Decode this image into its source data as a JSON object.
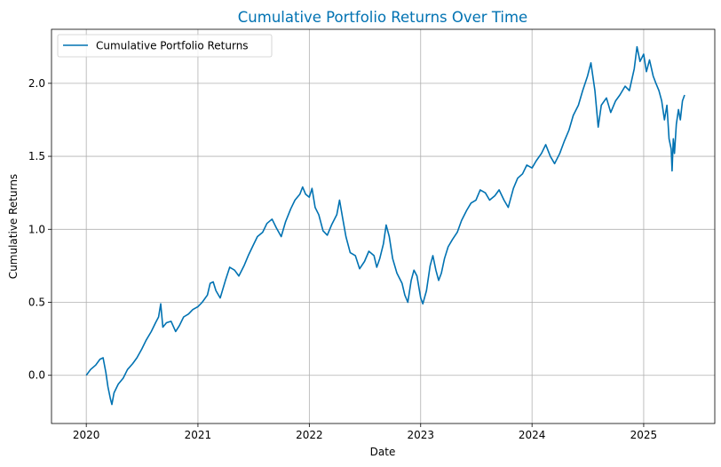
{
  "chart_data": {
    "type": "line",
    "title": "Cumulative Portfolio Returns Over Time",
    "xlabel": "Date",
    "ylabel": "Cumulative Returns",
    "x_ticks": [
      "2020",
      "2021",
      "2022",
      "2023",
      "2024",
      "2025"
    ],
    "y_ticks": [
      "0.0",
      "0.5",
      "1.0",
      "1.5",
      "2.0"
    ],
    "xlim": [
      "2019-09-09",
      "2025-08-22"
    ],
    "ylim": [
      -0.33,
      2.37
    ],
    "grid": true,
    "legend_position": "top-left",
    "colors": {
      "series": "#0072B2",
      "title": "#0072B2"
    },
    "series": [
      {
        "name": "Cumulative Portfolio Returns",
        "points": [
          [
            "2020-01-01",
            0.0
          ],
          [
            "2020-01-15",
            0.04
          ],
          [
            "2020-02-01",
            0.07
          ],
          [
            "2020-02-15",
            0.11
          ],
          [
            "2020-02-25",
            0.12
          ],
          [
            "2020-03-05",
            0.02
          ],
          [
            "2020-03-12",
            -0.08
          ],
          [
            "2020-03-20",
            -0.16
          ],
          [
            "2020-03-25",
            -0.2
          ],
          [
            "2020-04-01",
            -0.12
          ],
          [
            "2020-04-15",
            -0.06
          ],
          [
            "2020-05-01",
            -0.02
          ],
          [
            "2020-05-15",
            0.04
          ],
          [
            "2020-06-01",
            0.08
          ],
          [
            "2020-06-15",
            0.12
          ],
          [
            "2020-07-01",
            0.18
          ],
          [
            "2020-07-15",
            0.24
          ],
          [
            "2020-08-01",
            0.3
          ],
          [
            "2020-08-15",
            0.36
          ],
          [
            "2020-08-25",
            0.4
          ],
          [
            "2020-09-01",
            0.49
          ],
          [
            "2020-09-08",
            0.33
          ],
          [
            "2020-09-20",
            0.36
          ],
          [
            "2020-10-05",
            0.37
          ],
          [
            "2020-10-20",
            0.3
          ],
          [
            "2020-11-01",
            0.34
          ],
          [
            "2020-11-15",
            0.4
          ],
          [
            "2020-12-01",
            0.42
          ],
          [
            "2020-12-15",
            0.45
          ],
          [
            "2021-01-01",
            0.47
          ],
          [
            "2021-01-15",
            0.5
          ],
          [
            "2021-02-01",
            0.55
          ],
          [
            "2021-02-10",
            0.63
          ],
          [
            "2021-02-20",
            0.64
          ],
          [
            "2021-03-01",
            0.58
          ],
          [
            "2021-03-15",
            0.53
          ],
          [
            "2021-04-01",
            0.65
          ],
          [
            "2021-04-15",
            0.74
          ],
          [
            "2021-05-01",
            0.72
          ],
          [
            "2021-05-15",
            0.68
          ],
          [
            "2021-06-01",
            0.75
          ],
          [
            "2021-06-15",
            0.82
          ],
          [
            "2021-07-01",
            0.89
          ],
          [
            "2021-07-15",
            0.95
          ],
          [
            "2021-08-01",
            0.98
          ],
          [
            "2021-08-15",
            1.04
          ],
          [
            "2021-09-01",
            1.07
          ],
          [
            "2021-09-15",
            1.01
          ],
          [
            "2021-10-01",
            0.95
          ],
          [
            "2021-10-15",
            1.05
          ],
          [
            "2021-11-01",
            1.14
          ],
          [
            "2021-11-15",
            1.2
          ],
          [
            "2021-12-01",
            1.24
          ],
          [
            "2021-12-10",
            1.29
          ],
          [
            "2021-12-20",
            1.24
          ],
          [
            "2022-01-01",
            1.22
          ],
          [
            "2022-01-10",
            1.28
          ],
          [
            "2022-01-20",
            1.15
          ],
          [
            "2022-02-01",
            1.1
          ],
          [
            "2022-02-15",
            0.99
          ],
          [
            "2022-03-01",
            0.96
          ],
          [
            "2022-03-15",
            1.03
          ],
          [
            "2022-04-01",
            1.1
          ],
          [
            "2022-04-10",
            1.2
          ],
          [
            "2022-04-20",
            1.08
          ],
          [
            "2022-05-01",
            0.95
          ],
          [
            "2022-05-15",
            0.84
          ],
          [
            "2022-06-01",
            0.82
          ],
          [
            "2022-06-15",
            0.73
          ],
          [
            "2022-07-01",
            0.78
          ],
          [
            "2022-07-15",
            0.85
          ],
          [
            "2022-08-01",
            0.82
          ],
          [
            "2022-08-10",
            0.74
          ],
          [
            "2022-08-20",
            0.8
          ],
          [
            "2022-09-01",
            0.9
          ],
          [
            "2022-09-10",
            1.03
          ],
          [
            "2022-09-20",
            0.95
          ],
          [
            "2022-10-01",
            0.8
          ],
          [
            "2022-10-15",
            0.7
          ],
          [
            "2022-11-01",
            0.63
          ],
          [
            "2022-11-10",
            0.55
          ],
          [
            "2022-11-20",
            0.5
          ],
          [
            "2022-12-01",
            0.65
          ],
          [
            "2022-12-10",
            0.72
          ],
          [
            "2022-12-20",
            0.68
          ],
          [
            "2023-01-01",
            0.53
          ],
          [
            "2023-01-08",
            0.49
          ],
          [
            "2023-01-20",
            0.58
          ],
          [
            "2023-02-01",
            0.75
          ],
          [
            "2023-02-10",
            0.82
          ],
          [
            "2023-02-20",
            0.72
          ],
          [
            "2023-03-01",
            0.65
          ],
          [
            "2023-03-10",
            0.7
          ],
          [
            "2023-03-20",
            0.8
          ],
          [
            "2023-04-01",
            0.88
          ],
          [
            "2023-04-15",
            0.93
          ],
          [
            "2023-05-01",
            0.98
          ],
          [
            "2023-05-15",
            1.06
          ],
          [
            "2023-06-01",
            1.13
          ],
          [
            "2023-06-15",
            1.18
          ],
          [
            "2023-07-01",
            1.2
          ],
          [
            "2023-07-15",
            1.27
          ],
          [
            "2023-08-01",
            1.25
          ],
          [
            "2023-08-15",
            1.2
          ],
          [
            "2023-09-01",
            1.23
          ],
          [
            "2023-09-15",
            1.27
          ],
          [
            "2023-10-01",
            1.2
          ],
          [
            "2023-10-15",
            1.15
          ],
          [
            "2023-11-01",
            1.28
          ],
          [
            "2023-11-15",
            1.35
          ],
          [
            "2023-12-01",
            1.38
          ],
          [
            "2023-12-15",
            1.44
          ],
          [
            "2024-01-01",
            1.42
          ],
          [
            "2024-01-15",
            1.47
          ],
          [
            "2024-02-01",
            1.52
          ],
          [
            "2024-02-15",
            1.58
          ],
          [
            "2024-03-01",
            1.5
          ],
          [
            "2024-03-15",
            1.45
          ],
          [
            "2024-04-01",
            1.52
          ],
          [
            "2024-04-15",
            1.6
          ],
          [
            "2024-05-01",
            1.68
          ],
          [
            "2024-05-15",
            1.78
          ],
          [
            "2024-06-01",
            1.85
          ],
          [
            "2024-06-15",
            1.95
          ],
          [
            "2024-07-01",
            2.05
          ],
          [
            "2024-07-12",
            2.14
          ],
          [
            "2024-07-25",
            1.95
          ],
          [
            "2024-08-05",
            1.7
          ],
          [
            "2024-08-15",
            1.85
          ],
          [
            "2024-09-01",
            1.9
          ],
          [
            "2024-09-15",
            1.8
          ],
          [
            "2024-10-01",
            1.88
          ],
          [
            "2024-10-15",
            1.92
          ],
          [
            "2024-11-01",
            1.98
          ],
          [
            "2024-11-15",
            1.95
          ],
          [
            "2024-12-01",
            2.1
          ],
          [
            "2024-12-10",
            2.25
          ],
          [
            "2024-12-20",
            2.15
          ],
          [
            "2025-01-01",
            2.2
          ],
          [
            "2025-01-10",
            2.08
          ],
          [
            "2025-01-20",
            2.16
          ],
          [
            "2025-02-01",
            2.05
          ],
          [
            "2025-02-10",
            2.0
          ],
          [
            "2025-02-20",
            1.95
          ],
          [
            "2025-03-01",
            1.88
          ],
          [
            "2025-03-10",
            1.75
          ],
          [
            "2025-03-18",
            1.85
          ],
          [
            "2025-03-25",
            1.62
          ],
          [
            "2025-04-01",
            1.55
          ],
          [
            "2025-04-04",
            1.4
          ],
          [
            "2025-04-08",
            1.62
          ],
          [
            "2025-04-12",
            1.52
          ],
          [
            "2025-04-18",
            1.72
          ],
          [
            "2025-04-25",
            1.82
          ],
          [
            "2025-05-01",
            1.75
          ],
          [
            "2025-05-08",
            1.88
          ],
          [
            "2025-05-15",
            1.92
          ]
        ]
      }
    ]
  }
}
